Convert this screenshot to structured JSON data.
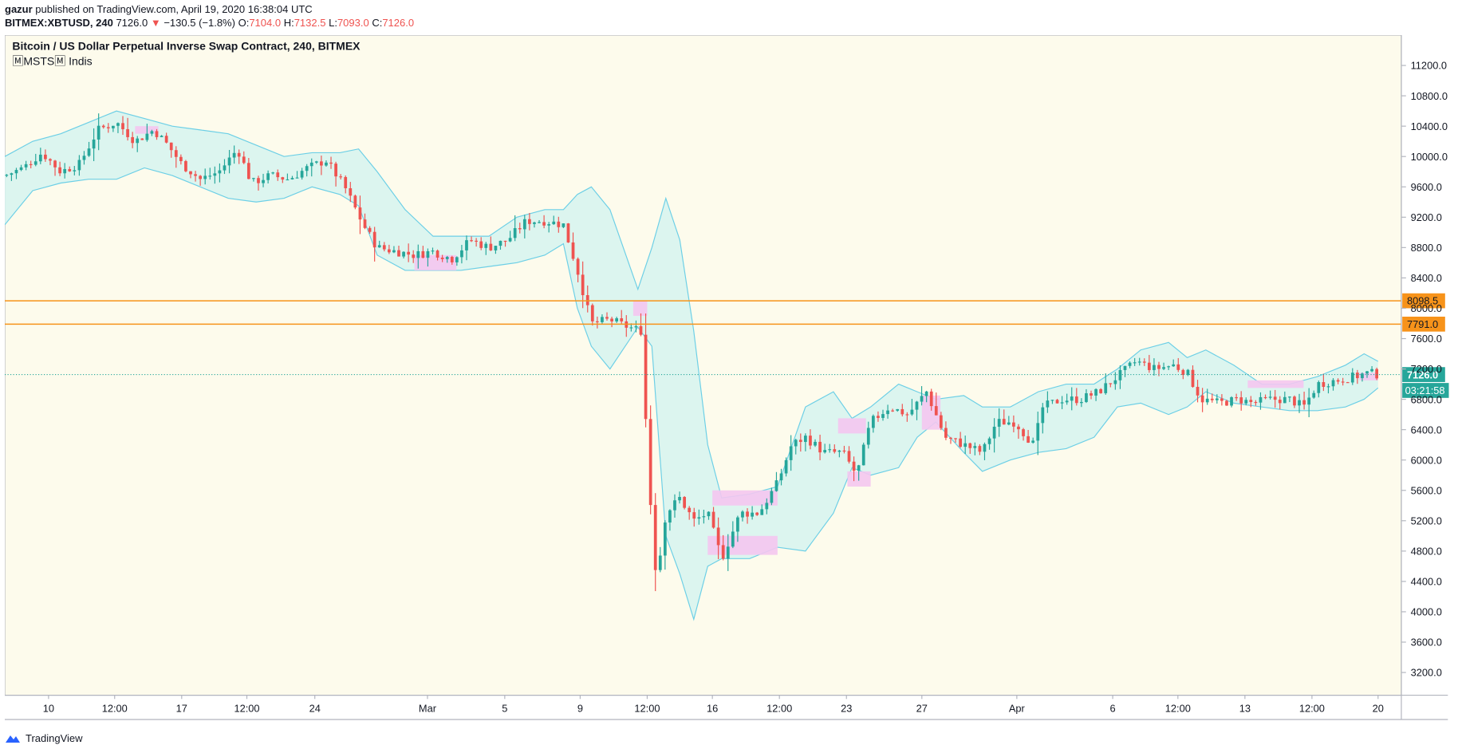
{
  "header": {
    "author": "gazur",
    "published_text": "published on TradingView.com, April 19, 2020 16:38:04 UTC",
    "symbol": "BITMEX:XBTUSD, 240",
    "last": "7126.0",
    "change_arrow": "▼",
    "change": "−130.5 (−1.8%)",
    "o_label": "O:",
    "o_value": "7104.0",
    "h_label": "H:",
    "h_value": "7132.5",
    "l_label": "L:",
    "l_value": "7093.0",
    "c_label": "C:",
    "c_value": "7126.0"
  },
  "legend": {
    "title": "Bitcoin / US Dollar Perpetual Inverse Swap Contract, 240, BITMEX",
    "indicator": "🄼MSTS🄼 Indis"
  },
  "footer": {
    "brand": "TradingView"
  },
  "colors": {
    "background": "#fdfbec",
    "up": "#26a69a",
    "down": "#ef5350",
    "band_fill": "#d6f3f0",
    "band_line": "#6ccfe6",
    "pink": "#f4c6f0",
    "hline": "#f7931a",
    "last_price": "#26a69a"
  },
  "chart_data": {
    "type": "candlestick",
    "timeframe": "240",
    "ylim": [
      2900,
      11600
    ],
    "y_ticks": [
      "11200.0",
      "10800.0",
      "10400.0",
      "10000.0",
      "9600.0",
      "9200.0",
      "8800.0",
      "8400.0",
      "8000.0",
      "7600.0",
      "7200.0",
      "6800.0",
      "6400.0",
      "6000.0",
      "5600.0",
      "5200.0",
      "4800.0",
      "4400.0",
      "4000.0",
      "3600.0",
      "3200.0"
    ],
    "x_ticks": [
      "10",
      "12:00",
      "17",
      "12:00",
      "24",
      "Mar",
      "5",
      "9",
      "12:00",
      "16",
      "12:00",
      "23",
      "27",
      "Apr",
      "6",
      "12:00",
      "13",
      "12:00",
      "20"
    ],
    "horizontal_lines": [
      {
        "price": 8098.5,
        "label": "8098.5"
      },
      {
        "price": 7791.0,
        "label": "7791.0"
      }
    ],
    "last_price": {
      "price": 7126.0,
      "label": "7126.0",
      "countdown": "03:21:58"
    },
    "close_path": [
      [
        0,
        9750
      ],
      [
        20,
        9850
      ],
      [
        40,
        10050
      ],
      [
        60,
        9800
      ],
      [
        80,
        9900
      ],
      [
        100,
        10350
      ],
      [
        120,
        10450
      ],
      [
        140,
        10200
      ],
      [
        160,
        10350
      ],
      [
        175,
        10150
      ],
      [
        190,
        9900
      ],
      [
        210,
        9700
      ],
      [
        230,
        9800
      ],
      [
        250,
        10100
      ],
      [
        265,
        9650
      ],
      [
        285,
        9750
      ],
      [
        305,
        9700
      ],
      [
        325,
        9850
      ],
      [
        345,
        9950
      ],
      [
        365,
        9600
      ],
      [
        385,
        9100
      ],
      [
        400,
        8800
      ],
      [
        420,
        8750
      ],
      [
        440,
        8700
      ],
      [
        460,
        8750
      ],
      [
        480,
        8650
      ],
      [
        500,
        8900
      ],
      [
        520,
        8800
      ],
      [
        540,
        8900
      ],
      [
        560,
        9150
      ],
      [
        580,
        9150
      ],
      [
        600,
        9100
      ],
      [
        615,
        8500
      ],
      [
        630,
        7800
      ],
      [
        650,
        7850
      ],
      [
        670,
        7750
      ],
      [
        685,
        7700
      ],
      [
        690,
        6000
      ],
      [
        700,
        4400
      ],
      [
        710,
        5300
      ],
      [
        725,
        5500
      ],
      [
        740,
        5200
      ],
      [
        755,
        5300
      ],
      [
        770,
        4700
      ],
      [
        790,
        5300
      ],
      [
        810,
        5300
      ],
      [
        830,
        5700
      ],
      [
        845,
        6200
      ],
      [
        860,
        6300
      ],
      [
        880,
        6100
      ],
      [
        900,
        6100
      ],
      [
        915,
        5800
      ],
      [
        930,
        6500
      ],
      [
        950,
        6700
      ],
      [
        970,
        6600
      ],
      [
        990,
        6900
      ],
      [
        1010,
        6300
      ],
      [
        1030,
        6200
      ],
      [
        1050,
        6100
      ],
      [
        1065,
        6500
      ],
      [
        1085,
        6500
      ],
      [
        1105,
        6200
      ],
      [
        1115,
        6700
      ],
      [
        1135,
        6800
      ],
      [
        1155,
        6800
      ],
      [
        1175,
        6900
      ],
      [
        1195,
        7100
      ],
      [
        1215,
        7300
      ],
      [
        1235,
        7200
      ],
      [
        1255,
        7250
      ],
      [
        1270,
        7150
      ],
      [
        1285,
        6800
      ],
      [
        1305,
        6750
      ],
      [
        1325,
        6800
      ],
      [
        1340,
        6750
      ],
      [
        1360,
        6800
      ],
      [
        1380,
        6800
      ],
      [
        1395,
        6700
      ],
      [
        1410,
        7000
      ],
      [
        1430,
        7050
      ],
      [
        1450,
        7100
      ],
      [
        1465,
        7150
      ],
      [
        1475,
        7126
      ]
    ],
    "bands": [
      {
        "x": 0,
        "upper": 10000,
        "lower": 9100
      },
      {
        "x": 30,
        "upper": 10200,
        "lower": 9550
      },
      {
        "x": 60,
        "upper": 10300,
        "lower": 9650
      },
      {
        "x": 90,
        "upper": 10450,
        "lower": 9700
      },
      {
        "x": 120,
        "upper": 10600,
        "lower": 9700
      },
      {
        "x": 150,
        "upper": 10500,
        "lower": 9850
      },
      {
        "x": 180,
        "upper": 10400,
        "lower": 9750
      },
      {
        "x": 210,
        "upper": 10350,
        "lower": 9600
      },
      {
        "x": 240,
        "upper": 10300,
        "lower": 9450
      },
      {
        "x": 270,
        "upper": 10150,
        "lower": 9400
      },
      {
        "x": 300,
        "upper": 10000,
        "lower": 9450
      },
      {
        "x": 330,
        "upper": 10050,
        "lower": 9600
      },
      {
        "x": 360,
        "upper": 10050,
        "lower": 9500
      },
      {
        "x": 380,
        "upper": 10100,
        "lower": 9350
      },
      {
        "x": 400,
        "upper": 9800,
        "lower": 8700
      },
      {
        "x": 430,
        "upper": 9300,
        "lower": 8500
      },
      {
        "x": 460,
        "upper": 8950,
        "lower": 8500
      },
      {
        "x": 490,
        "upper": 8950,
        "lower": 8500
      },
      {
        "x": 520,
        "upper": 8950,
        "lower": 8550
      },
      {
        "x": 550,
        "upper": 9200,
        "lower": 8600
      },
      {
        "x": 580,
        "upper": 9300,
        "lower": 8700
      },
      {
        "x": 600,
        "upper": 9300,
        "lower": 8850
      },
      {
        "x": 615,
        "upper": 9500,
        "lower": 8000
      },
      {
        "x": 630,
        "upper": 9600,
        "lower": 7500
      },
      {
        "x": 650,
        "upper": 9300,
        "lower": 7200
      },
      {
        "x": 680,
        "upper": 8250,
        "lower": 7750
      },
      {
        "x": 695,
        "upper": 8800,
        "lower": 7500
      },
      {
        "x": 710,
        "upper": 9450,
        "lower": 5000
      },
      {
        "x": 725,
        "upper": 8900,
        "lower": 4500
      },
      {
        "x": 740,
        "upper": 7700,
        "lower": 3900
      },
      {
        "x": 755,
        "upper": 6200,
        "lower": 4600
      },
      {
        "x": 770,
        "upper": 5500,
        "lower": 4700
      },
      {
        "x": 800,
        "upper": 5550,
        "lower": 4700
      },
      {
        "x": 830,
        "upper": 5650,
        "lower": 4850
      },
      {
        "x": 860,
        "upper": 6700,
        "lower": 4800
      },
      {
        "x": 890,
        "upper": 6900,
        "lower": 5300
      },
      {
        "x": 910,
        "upper": 6550,
        "lower": 5900
      },
      {
        "x": 930,
        "upper": 6700,
        "lower": 5800
      },
      {
        "x": 960,
        "upper": 7000,
        "lower": 5900
      },
      {
        "x": 980,
        "upper": 6900,
        "lower": 6300
      },
      {
        "x": 1000,
        "upper": 6800,
        "lower": 6500
      },
      {
        "x": 1030,
        "upper": 6850,
        "lower": 6100
      },
      {
        "x": 1050,
        "upper": 6700,
        "lower": 5850
      },
      {
        "x": 1080,
        "upper": 6700,
        "lower": 6000
      },
      {
        "x": 1110,
        "upper": 6900,
        "lower": 6100
      },
      {
        "x": 1140,
        "upper": 7000,
        "lower": 6150
      },
      {
        "x": 1170,
        "upper": 7000,
        "lower": 6300
      },
      {
        "x": 1195,
        "upper": 7200,
        "lower": 6700
      },
      {
        "x": 1220,
        "upper": 7450,
        "lower": 6750
      },
      {
        "x": 1250,
        "upper": 7550,
        "lower": 6600
      },
      {
        "x": 1270,
        "upper": 7350,
        "lower": 6700
      },
      {
        "x": 1290,
        "upper": 7450,
        "lower": 6900
      },
      {
        "x": 1320,
        "upper": 7250,
        "lower": 6750
      },
      {
        "x": 1350,
        "upper": 7000,
        "lower": 6700
      },
      {
        "x": 1380,
        "upper": 7000,
        "lower": 6650
      },
      {
        "x": 1410,
        "upper": 7100,
        "lower": 6650
      },
      {
        "x": 1440,
        "upper": 7250,
        "lower": 6700
      },
      {
        "x": 1460,
        "upper": 7400,
        "lower": 6800
      },
      {
        "x": 1475,
        "upper": 7300,
        "lower": 6950
      }
    ],
    "pink_zones": [
      {
        "x0": 140,
        "x1": 165,
        "top": 10400,
        "bottom": 10300
      },
      {
        "x0": 440,
        "x1": 485,
        "top": 8700,
        "bottom": 8500
      },
      {
        "x0": 675,
        "x1": 690,
        "top": 8100,
        "bottom": 7900
      },
      {
        "x0": 760,
        "x1": 830,
        "top": 5600,
        "bottom": 5400
      },
      {
        "x0": 755,
        "x1": 830,
        "top": 5000,
        "bottom": 4750
      },
      {
        "x0": 895,
        "x1": 925,
        "top": 6550,
        "bottom": 6350
      },
      {
        "x0": 905,
        "x1": 930,
        "top": 5850,
        "bottom": 5650
      },
      {
        "x0": 985,
        "x1": 1005,
        "top": 6850,
        "bottom": 6400
      },
      {
        "x0": 1335,
        "x1": 1395,
        "top": 7050,
        "bottom": 6950
      },
      {
        "x0": 1455,
        "x1": 1475,
        "top": 7150,
        "bottom": 7050
      }
    ]
  }
}
